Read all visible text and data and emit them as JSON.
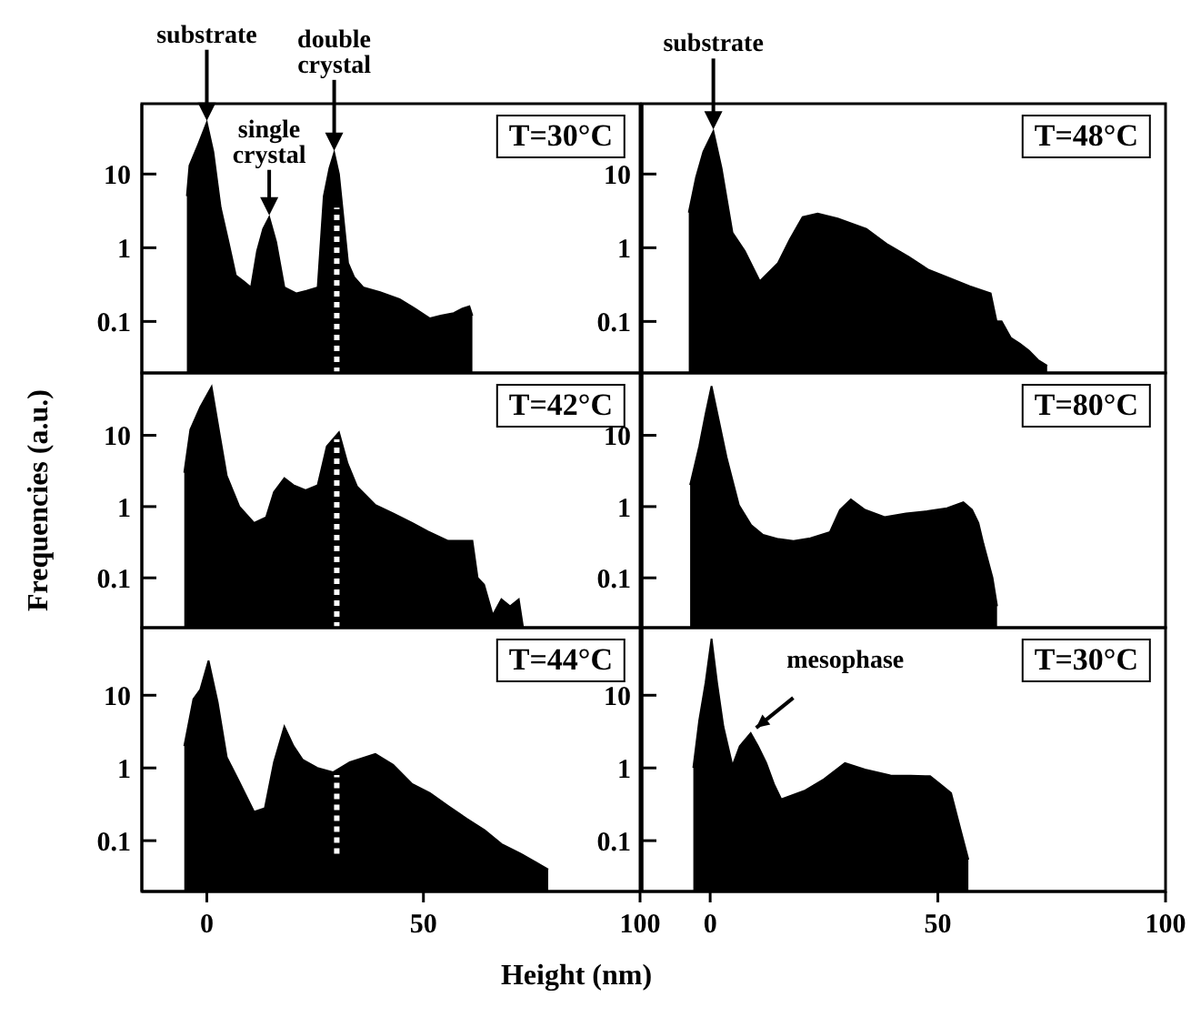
{
  "chart_data": [
    {
      "type": "area",
      "title": "T=30°C",
      "xlim": [
        -15,
        100
      ],
      "xticks": [
        0,
        50,
        100
      ],
      "ylim": [
        0.02,
        90
      ],
      "yticks": [
        0.1,
        1,
        10
      ],
      "log": "y",
      "tick_labels": "y",
      "series": [
        {
          "color": "#000000",
          "x": [
            -4.6,
            -4,
            -2,
            0,
            1.5,
            3.2,
            5,
            6.7,
            8.5,
            10.2,
            11.6,
            13,
            14.4,
            16,
            17.9,
            20.7,
            23,
            25.6,
            27,
            28.3,
            29.4,
            30.5,
            32.6,
            34,
            36.1,
            40,
            44.5,
            48,
            51.5,
            54,
            57,
            59,
            60.6,
            61.3
          ],
          "values": [
            5,
            13,
            25,
            50,
            20,
            3.5,
            1.2,
            0.42,
            0.35,
            0.29,
            0.9,
            1.8,
            2.6,
            1.2,
            0.29,
            0.24,
            0.26,
            0.29,
            5,
            12,
            19.5,
            10,
            0.62,
            0.4,
            0.29,
            0.25,
            0.2,
            0.15,
            0.11,
            0.12,
            0.13,
            0.15,
            0.16,
            0.12
          ]
        },
        {
          "type": "line",
          "color": "#ffffff",
          "line_style": "dotted",
          "x": [
            30,
            30
          ],
          "values": [
            0.02,
            3.5
          ]
        }
      ],
      "annotations": [
        {
          "text": "substrate",
          "x": 0,
          "y": 50
        },
        {
          "text": "single\ncrystal",
          "x": 14.4,
          "y": 2.6
        },
        {
          "text": "double\ncrystal",
          "x": 29.4,
          "y": 19.5
        }
      ]
    },
    {
      "type": "area",
      "title": "T=48°C",
      "xlim": [
        -15,
        100
      ],
      "xticks": [
        0,
        50,
        100
      ],
      "ylim": [
        0.02,
        90
      ],
      "yticks": [
        0.1,
        1,
        10
      ],
      "log": "y",
      "tick_labels": "y",
      "series": [
        {
          "color": "#000000",
          "x": [
            -4.7,
            -3.1,
            -1.5,
            0.7,
            2.5,
            4.9,
            7.6,
            10.9,
            14.9,
            17.5,
            20.3,
            23.6,
            28,
            34.3,
            39,
            43.6,
            48,
            52.9,
            57,
            61.6,
            62.9,
            64,
            66,
            68,
            70,
            72,
            74
          ],
          "values": [
            3,
            9,
            20,
            38,
            12,
            1.6,
            0.9,
            0.35,
            0.62,
            1.3,
            2.6,
            2.9,
            2.5,
            1.8,
            1.1,
            0.75,
            0.5,
            0.38,
            0.3,
            0.24,
            0.1,
            0.1,
            0.06,
            0.05,
            0.04,
            0.03,
            0.025
          ]
        }
      ],
      "annotations": [
        {
          "text": "substrate",
          "x": 0.7,
          "y": 38
        }
      ]
    },
    {
      "type": "area",
      "title": "T=42°C",
      "ylabel": "Frequencies (a.u.)",
      "xlim": [
        -15,
        100
      ],
      "xticks": [
        0,
        50,
        100
      ],
      "ylim": [
        0.02,
        75
      ],
      "yticks": [
        0.1,
        1,
        10
      ],
      "log": "y",
      "tick_labels": "y",
      "series": [
        {
          "color": "#000000",
          "x": [
            -5.2,
            -3.8,
            -1.5,
            1.1,
            3,
            4.6,
            7.5,
            10.9,
            13.7,
            15.5,
            17.9,
            20,
            22.8,
            25.6,
            27.7,
            30.5,
            32.5,
            34.7,
            38.9,
            43,
            47.4,
            51,
            55.7,
            61.3,
            62.5,
            64,
            66,
            68,
            70,
            72,
            73
          ],
          "values": [
            3,
            12,
            25,
            48,
            10,
            2.7,
            1,
            0.59,
            0.71,
            1.6,
            2.5,
            2,
            1.7,
            2,
            7,
            11,
            4,
            1.9,
            1.05,
            0.8,
            0.59,
            0.45,
            0.33,
            0.33,
            0.1,
            0.08,
            0.03,
            0.05,
            0.04,
            0.05,
            0.02
          ]
        },
        {
          "type": "line",
          "color": "#ffffff",
          "line_style": "dotted",
          "x": [
            30,
            30
          ],
          "values": [
            0.02,
            8.8
          ]
        }
      ]
    },
    {
      "type": "area",
      "title": "T=80°C",
      "xlim": [
        -15,
        100
      ],
      "xticks": [
        0,
        50,
        100
      ],
      "ylim": [
        0.02,
        75
      ],
      "yticks": [
        0.1,
        1,
        10
      ],
      "log": "y",
      "tick_labels": "y",
      "series": [
        {
          "color": "#000000",
          "x": [
            -4.4,
            -2.4,
            -1,
            0.3,
            2,
            3.6,
            6.3,
            9,
            11.6,
            15,
            18.3,
            22,
            26.3,
            28.5,
            30.9,
            34,
            38.3,
            43,
            47.6,
            52,
            55.6,
            57.5,
            58.9,
            60,
            62,
            63
          ],
          "values": [
            2,
            7,
            20,
            49,
            15,
            4.9,
            1.05,
            0.55,
            0.4,
            0.35,
            0.33,
            0.36,
            0.44,
            0.9,
            1.26,
            0.9,
            0.71,
            0.8,
            0.86,
            0.95,
            1.15,
            0.9,
            0.59,
            0.3,
            0.1,
            0.04
          ]
        }
      ]
    },
    {
      "type": "area",
      "title": "T=44°C",
      "xlabel": "Height (nm)",
      "xlim": [
        -15,
        100
      ],
      "xticks": [
        0,
        50,
        100
      ],
      "ylim": [
        0.02,
        85
      ],
      "yticks": [
        0.1,
        1,
        10
      ],
      "log": "y",
      "series": [
        {
          "color": "#000000",
          "x": [
            -5.2,
            -3.1,
            -1.5,
            0.4,
            2.5,
            4.6,
            7.4,
            10.9,
            13.4,
            15.5,
            17.9,
            20,
            22.1,
            25.5,
            29.1,
            33,
            38.9,
            43,
            47.4,
            51.5,
            55.7,
            60,
            64.1,
            68,
            72.5,
            76,
            78.8
          ],
          "values": [
            2,
            8.8,
            12,
            30,
            8,
            1.4,
            0.66,
            0.25,
            0.28,
            1.2,
            3.7,
            2,
            1.3,
            1,
            0.87,
            1.2,
            1.56,
            1.1,
            0.6,
            0.45,
            0.3,
            0.2,
            0.14,
            0.09,
            0.066,
            0.05,
            0.04
          ]
        },
        {
          "type": "line",
          "color": "#ffffff",
          "line_style": "dotted",
          "x": [
            30,
            30
          ],
          "values": [
            0.066,
            0.8
          ]
        }
      ]
    },
    {
      "type": "area",
      "title": "T=30°C",
      "xlim": [
        -15,
        100
      ],
      "xticks": [
        0,
        50,
        100
      ],
      "ylim": [
        0.02,
        85
      ],
      "yticks": [
        0.1,
        1,
        10
      ],
      "log": "y",
      "series": [
        {
          "color": "#000000",
          "x": [
            -3.7,
            -2.4,
            -1,
            0.3,
            1.5,
            2.9,
            4.9,
            6.5,
            8.9,
            10.5,
            12.3,
            14,
            15.6,
            20.9,
            25,
            29.6,
            34,
            39.6,
            44,
            48.3,
            50.5,
            52.9,
            55,
            56.7
          ],
          "values": [
            1,
            4.5,
            15,
            60,
            15,
            3.7,
            1.07,
            2,
            3,
            2,
            1.17,
            0.6,
            0.37,
            0.49,
            0.7,
            1.17,
            0.95,
            0.79,
            0.78,
            0.77,
            0.6,
            0.45,
            0.14,
            0.055
          ]
        }
      ],
      "annotations": [
        {
          "text": "mesophase",
          "x": 8.9,
          "y": 3
        }
      ]
    }
  ]
}
